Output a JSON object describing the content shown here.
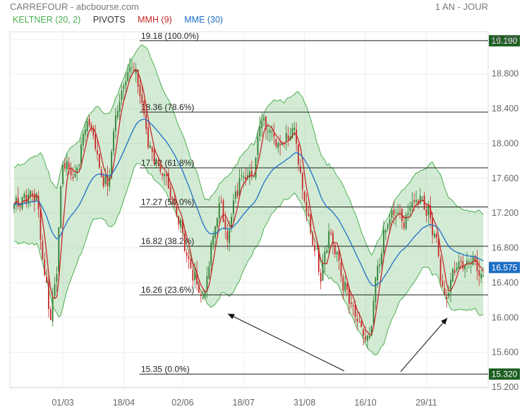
{
  "header": {
    "title": "CARREFOUR - abcbourse.com",
    "period": "1 AN - JOUR"
  },
  "legend": [
    {
      "label": "KELTNER (20, 2)",
      "color": "#4caf50"
    },
    {
      "label": "PIVOTS",
      "color": "#333333"
    },
    {
      "label": "MMH (9)",
      "color": "#c62828"
    },
    {
      "label": "MME (30)",
      "color": "#1e6fc5"
    }
  ],
  "chart_data": {
    "type": "candlestick",
    "ylim": [
      15.2,
      19.3
    ],
    "y_ticks": [
      "15.200",
      "15.600",
      "16.000",
      "16.400",
      "16.800",
      "17.200",
      "17.600",
      "18.000",
      "18.400",
      "18.800",
      "19.200"
    ],
    "x_ticks": [
      {
        "label": "01/03",
        "index": 24
      },
      {
        "label": "18/04",
        "index": 54
      },
      {
        "label": "02/06",
        "index": 83
      },
      {
        "label": "18/07",
        "index": 113
      },
      {
        "label": "31/08",
        "index": 143
      },
      {
        "label": "16/10",
        "index": 173
      },
      {
        "label": "29/11",
        "index": 203
      }
    ],
    "last_price": "16.575",
    "fibonacci_levels": [
      {
        "label": "19.18  (100.0%)",
        "value": 19.18,
        "box": "19.190"
      },
      {
        "label": "18.36  (78.6%)",
        "value": 18.36
      },
      {
        "label": "17.72  (61.8%)",
        "value": 17.72
      },
      {
        "label": "17.27  (50.0%)",
        "value": 17.27
      },
      {
        "label": "16.82  (38.2%)",
        "value": 16.82
      },
      {
        "label": "16.26  (23.6%)",
        "value": 16.26
      },
      {
        "label": "15.35  (0.0%)",
        "value": 15.35,
        "box": "15.320"
      }
    ],
    "close_anchors": [
      [
        0,
        17.3
      ],
      [
        6,
        17.4
      ],
      [
        11,
        17.4
      ],
      [
        15,
        16.5
      ],
      [
        18,
        16.0
      ],
      [
        21,
        16.6
      ],
      [
        24,
        17.8
      ],
      [
        30,
        17.6
      ],
      [
        36,
        18.3
      ],
      [
        40,
        18.0
      ],
      [
        43,
        17.6
      ],
      [
        46,
        17.5
      ],
      [
        50,
        18.3
      ],
      [
        55,
        18.8
      ],
      [
        58,
        18.9
      ],
      [
        62,
        18.6
      ],
      [
        66,
        18.0
      ],
      [
        70,
        17.8
      ],
      [
        74,
        17.6
      ],
      [
        78,
        17.3
      ],
      [
        82,
        17.1
      ],
      [
        86,
        16.6
      ],
      [
        90,
        16.4
      ],
      [
        93,
        16.2
      ],
      [
        96,
        16.6
      ],
      [
        99,
        17.1
      ],
      [
        102,
        17.3
      ],
      [
        105,
        16.9
      ],
      [
        109,
        17.4
      ],
      [
        113,
        17.7
      ],
      [
        118,
        17.6
      ],
      [
        121,
        18.3
      ],
      [
        125,
        18.2
      ],
      [
        130,
        18.0
      ],
      [
        135,
        18.1
      ],
      [
        138,
        18.2
      ],
      [
        141,
        17.6
      ],
      [
        144,
        17.2
      ],
      [
        148,
        16.8
      ],
      [
        151,
        16.5
      ],
      [
        155,
        17.0
      ],
      [
        159,
        16.7
      ],
      [
        162,
        16.4
      ],
      [
        165,
        16.2
      ],
      [
        168,
        16.0
      ],
      [
        172,
        15.8
      ],
      [
        175,
        15.7
      ],
      [
        178,
        16.4
      ],
      [
        181,
        16.8
      ],
      [
        184,
        17.1
      ],
      [
        188,
        17.2
      ],
      [
        192,
        17.1
      ],
      [
        196,
        17.3
      ],
      [
        200,
        17.4
      ],
      [
        204,
        17.2
      ],
      [
        208,
        16.9
      ],
      [
        211,
        16.3
      ],
      [
        213,
        16.2
      ],
      [
        217,
        16.6
      ],
      [
        221,
        16.6
      ],
      [
        225,
        16.7
      ],
      [
        228,
        16.6
      ],
      [
        231,
        16.45
      ]
    ],
    "annotations": "two arrows pointing to lows at the 16.26 and 16.0 area"
  }
}
